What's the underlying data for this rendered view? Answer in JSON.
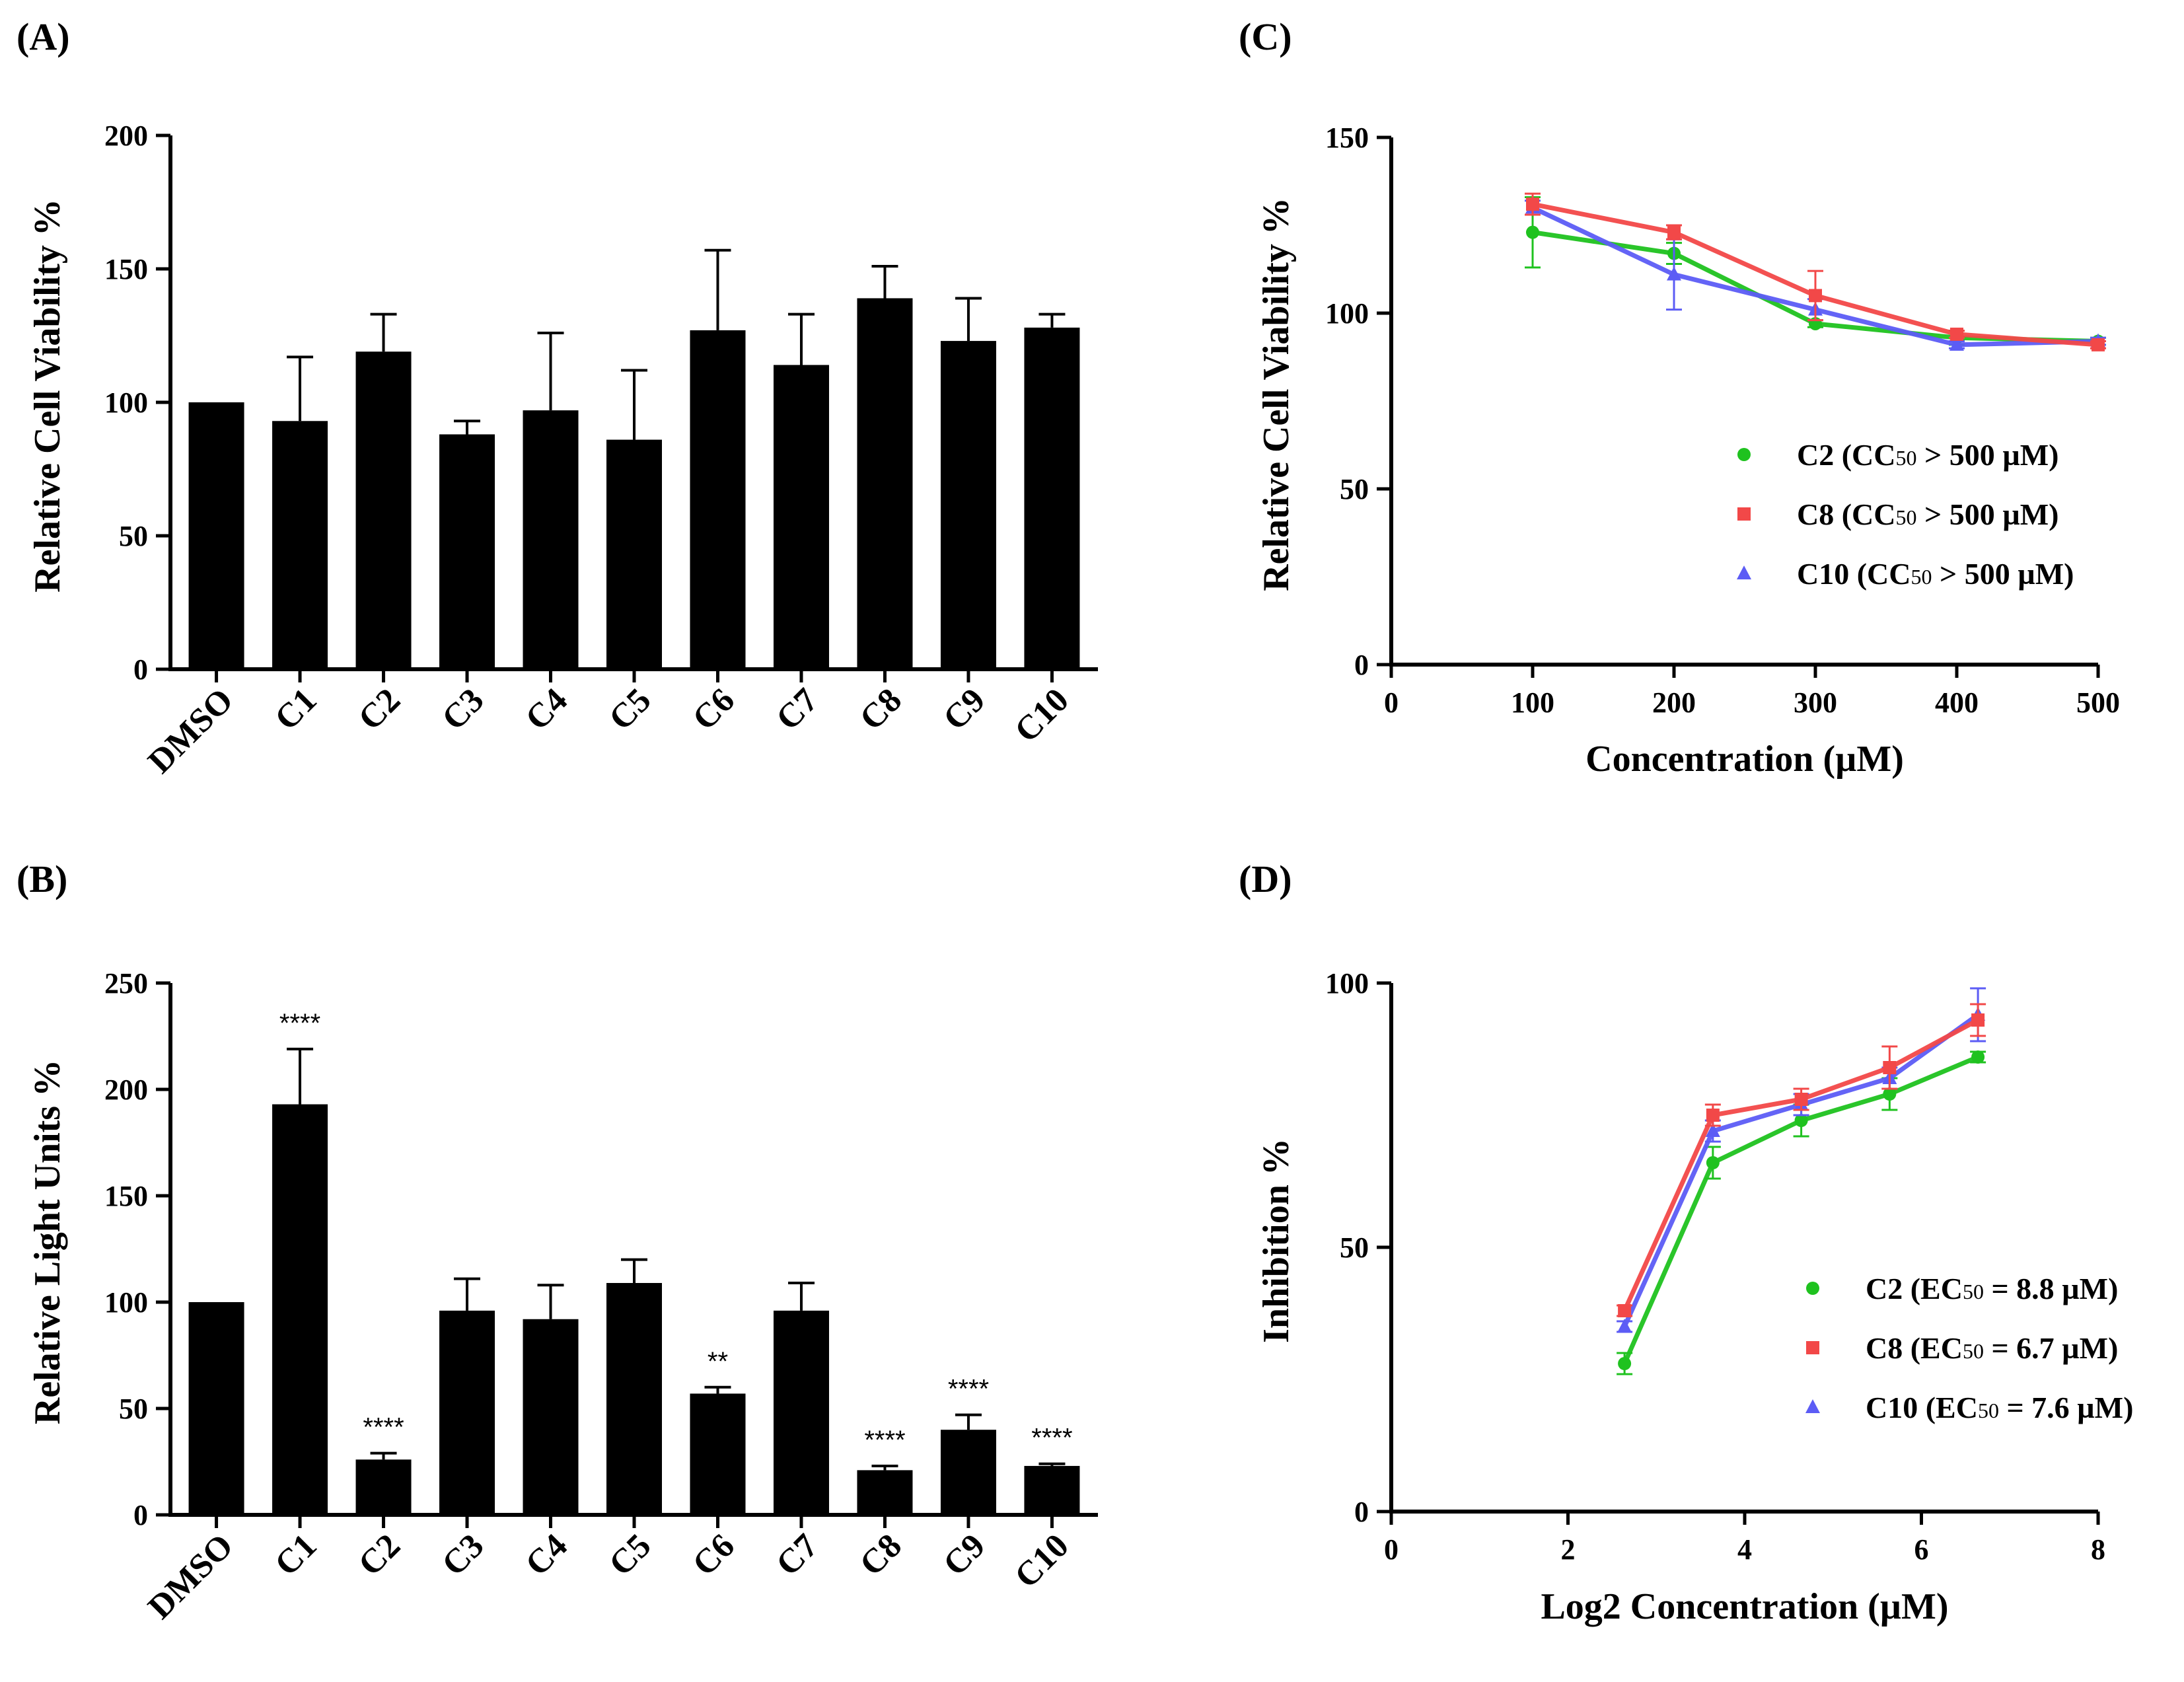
{
  "colors": {
    "C2": "#1fc21f",
    "C8": "#f24848",
    "C10": "#5c5cf5",
    "bar": "#000000"
  },
  "chart_data": [
    {
      "panel_label": "(A)",
      "type": "bar",
      "ylabel": "Relative Cell Viability %",
      "xlabel": "",
      "ylim": [
        0,
        200
      ],
      "yticks": [
        "0",
        "50",
        "100",
        "150",
        "200"
      ],
      "categories": [
        "DMSO",
        "C1",
        "C2",
        "C3",
        "C4",
        "C5",
        "C6",
        "C7",
        "C8",
        "C9",
        "C10"
      ],
      "values": [
        100,
        93,
        119,
        88,
        97,
        86,
        127,
        114,
        139,
        123,
        128
      ],
      "errors": [
        0,
        24,
        14,
        5,
        29,
        26,
        30,
        19,
        12,
        16,
        5
      ]
    },
    {
      "panel_label": "(B)",
      "type": "bar",
      "ylabel": "Relative Light Units %",
      "xlabel": "",
      "ylim": [
        0,
        250
      ],
      "yticks": [
        "0",
        "50",
        "100",
        "150",
        "200",
        "250"
      ],
      "categories": [
        "DMSO",
        "C1",
        "C2",
        "C3",
        "C4",
        "C5",
        "C6",
        "C7",
        "C8",
        "C9",
        "C10"
      ],
      "values": [
        100,
        193,
        26,
        96,
        92,
        109,
        57,
        96,
        21,
        40,
        23
      ],
      "errors": [
        0,
        26,
        3,
        15,
        16,
        11,
        3,
        13,
        2,
        7,
        1
      ],
      "significance": [
        "",
        "****",
        "****",
        "",
        "",
        "",
        "**",
        "",
        "****",
        "****",
        "****"
      ]
    },
    {
      "panel_label": "(C)",
      "type": "line",
      "ylabel": "Relative Cell Viability %",
      "xlabel": "Concentration (µM)",
      "xlim": [
        0,
        500
      ],
      "ylim": [
        0,
        150
      ],
      "xticks": [
        "0",
        "100",
        "200",
        "300",
        "400",
        "500"
      ],
      "yticks": [
        "0",
        "50",
        "100",
        "150"
      ],
      "x": [
        100,
        200,
        300,
        400,
        500
      ],
      "legend_position": "center-right",
      "series": [
        {
          "name": "C2",
          "legend": "C2 (CC50 > 500 µM)",
          "legend_parts": [
            "C2 (CC",
            "50",
            " > 500 µM)"
          ],
          "marker": "circle",
          "values": [
            123,
            117,
            97,
            93,
            92
          ],
          "errors": [
            10,
            3,
            1,
            2,
            1
          ]
        },
        {
          "name": "C8",
          "legend": "C8 (CC50 > 500 µM)",
          "legend_parts": [
            "C8 (CC",
            "50",
            " > 500 µM)"
          ],
          "marker": "square",
          "values": [
            131,
            123,
            105,
            94,
            91
          ],
          "errors": [
            3,
            2,
            7,
            1,
            1
          ]
        },
        {
          "name": "C10",
          "legend": "C10 (CC50 > 500 µM)",
          "legend_parts": [
            "C10 (CC",
            "50",
            " > 500 µM)"
          ],
          "marker": "triangle",
          "values": [
            130,
            111,
            101,
            91,
            92
          ],
          "errors": [
            2,
            10,
            3,
            1,
            1
          ]
        }
      ]
    },
    {
      "panel_label": "(D)",
      "type": "line",
      "ylabel": "Inhibition  %",
      "xlabel": "Log2 Concentration (µM)",
      "xlim": [
        0,
        8
      ],
      "ylim": [
        0,
        100
      ],
      "xticks": [
        "0",
        "2",
        "4",
        "6",
        "8"
      ],
      "yticks": [
        "0",
        "50",
        "100"
      ],
      "x": [
        2.64,
        3.64,
        4.64,
        5.64,
        6.64
      ],
      "legend_position": "bottom-right",
      "series": [
        {
          "name": "C2",
          "legend": "C2 (EC50 = 8.8 µM)",
          "legend_parts": [
            "C2 (EC",
            "50",
            " = 8.8 µM)"
          ],
          "marker": "circle",
          "values": [
            28,
            66,
            74,
            79,
            86
          ],
          "errors": [
            2,
            3,
            3,
            3,
            1
          ]
        },
        {
          "name": "C8",
          "legend": "C8 (EC50 = 6.7 µM)",
          "legend_parts": [
            "C8 (EC",
            "50",
            " = 6.7 µM)"
          ],
          "marker": "square",
          "values": [
            38,
            75,
            78,
            84,
            93
          ],
          "errors": [
            1,
            2,
            2,
            4,
            3
          ]
        },
        {
          "name": "C10",
          "legend": "C10 (EC50 = 7.6 µM)",
          "legend_parts": [
            "C10 (EC",
            "50",
            " = 7.6 µM)"
          ],
          "marker": "triangle",
          "values": [
            35,
            72,
            77,
            82,
            94
          ],
          "errors": [
            1,
            2,
            2,
            2,
            5
          ]
        }
      ]
    }
  ]
}
